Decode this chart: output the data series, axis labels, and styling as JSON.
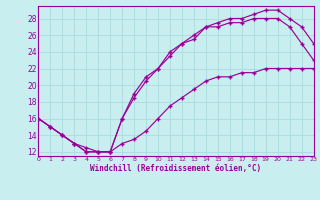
{
  "xlabel": "Windchill (Refroidissement éolien,°C)",
  "bg_color": "#c8eef0",
  "line_color": "#990099",
  "grid_color": "#b0dde0",
  "xlim": [
    0,
    23
  ],
  "ylim": [
    11.5,
    29.5
  ],
  "xticks": [
    0,
    1,
    2,
    3,
    4,
    5,
    6,
    7,
    8,
    9,
    10,
    11,
    12,
    13,
    14,
    15,
    16,
    17,
    18,
    19,
    20,
    21,
    22,
    23
  ],
  "yticks": [
    12,
    14,
    16,
    18,
    20,
    22,
    24,
    26,
    28
  ],
  "line1_x": [
    0,
    1,
    2,
    3,
    4,
    5,
    6,
    7,
    8,
    9,
    10,
    11,
    12,
    13,
    14,
    15,
    16,
    17,
    18,
    19,
    20,
    21,
    22,
    23
  ],
  "line1_y": [
    16,
    15,
    14,
    13,
    12,
    12,
    12,
    16,
    19,
    21,
    22,
    24,
    25,
    26,
    27,
    27.5,
    28,
    28,
    28.5,
    29,
    29,
    28,
    27,
    25
  ],
  "line2_x": [
    0,
    1,
    2,
    3,
    4,
    5,
    6,
    7,
    8,
    9,
    10,
    11,
    12,
    13,
    14,
    15,
    16,
    17,
    18,
    19,
    20,
    21,
    22,
    23
  ],
  "line2_y": [
    16,
    15,
    14,
    13,
    12,
    12,
    12,
    16,
    18.5,
    20.5,
    22,
    23.5,
    25,
    25.5,
    27,
    27,
    27.5,
    27.5,
    28,
    28,
    28,
    27,
    25,
    23
  ],
  "line3_x": [
    0,
    1,
    2,
    3,
    4,
    5,
    6,
    7,
    8,
    9,
    10,
    11,
    12,
    13,
    14,
    15,
    16,
    17,
    18,
    19,
    20,
    21,
    22,
    23
  ],
  "line3_y": [
    16,
    15,
    14,
    13,
    12.5,
    12,
    12,
    13,
    13.5,
    14.5,
    16,
    17.5,
    18.5,
    19.5,
    20.5,
    21,
    21,
    21.5,
    21.5,
    22,
    22,
    22,
    22,
    22
  ]
}
